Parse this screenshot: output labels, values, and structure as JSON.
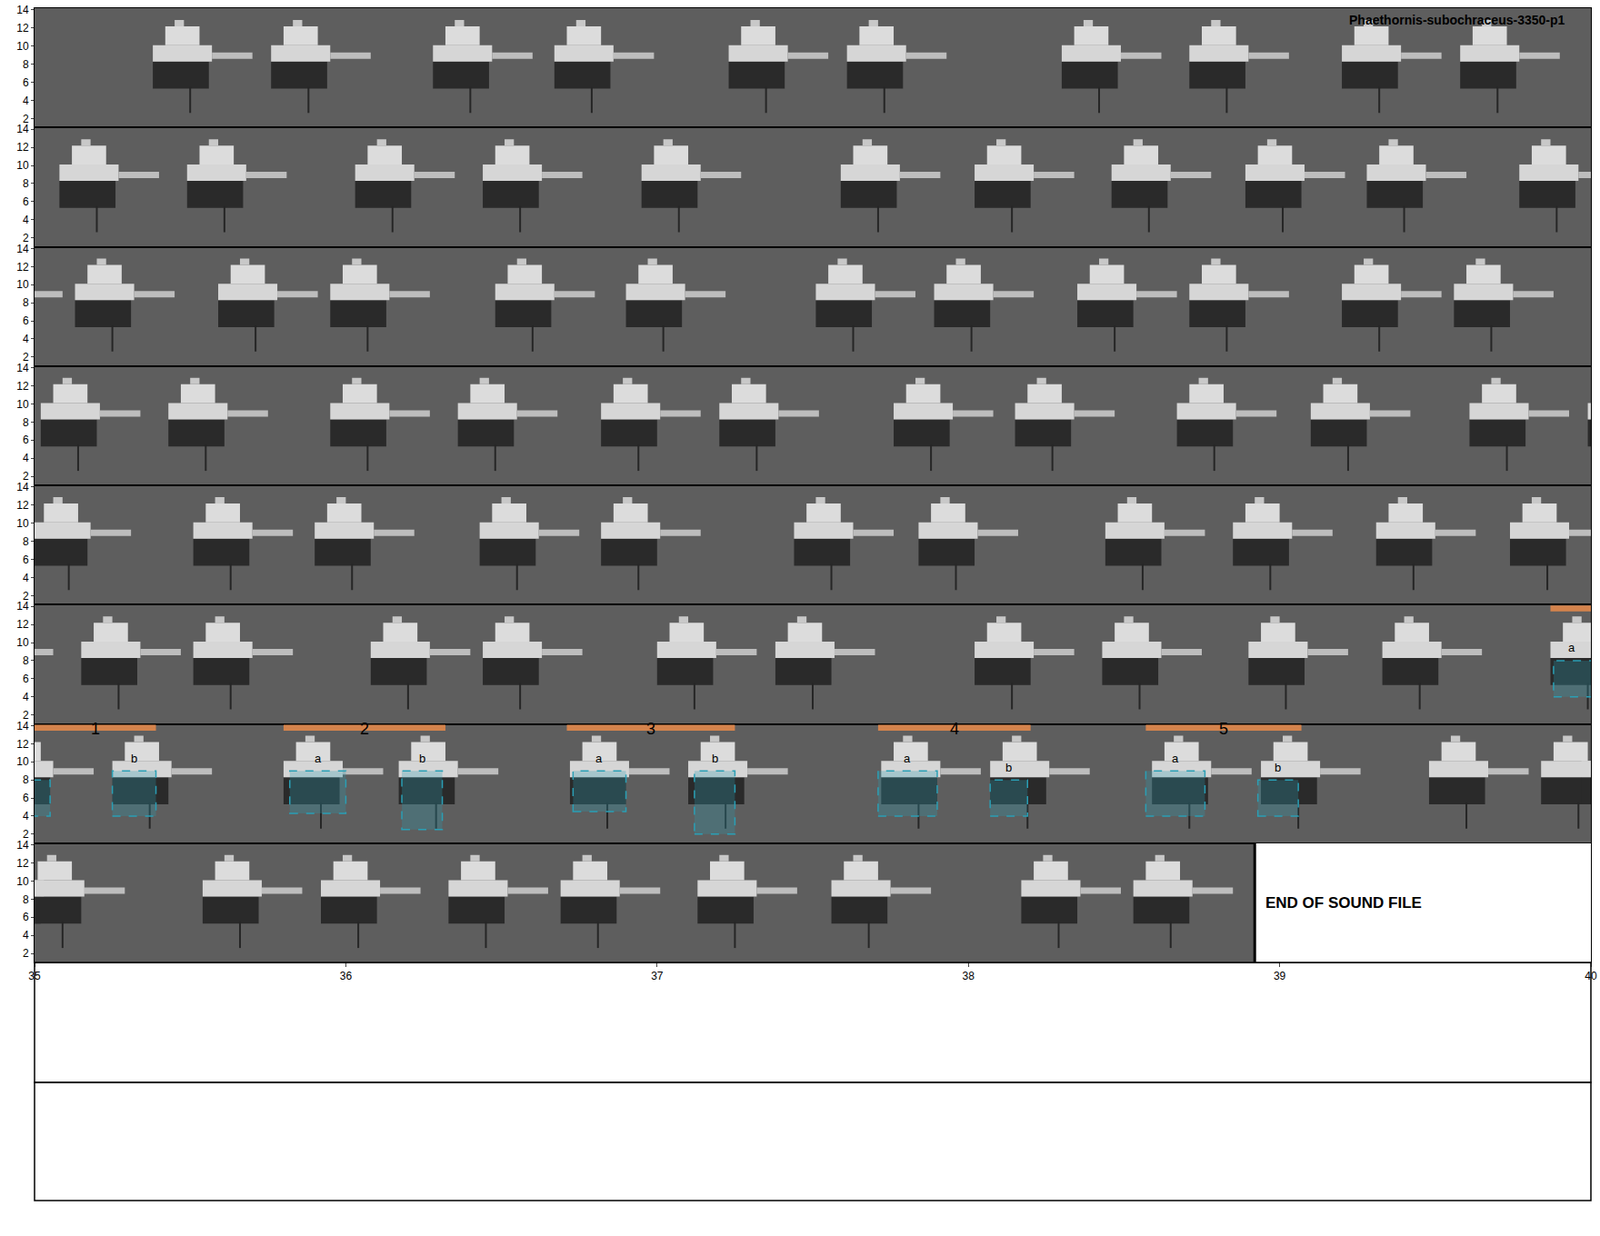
{
  "chart_data": {
    "type": "spectrogram",
    "title": "Phaethornis-subochraceus-3350-p1",
    "ylim": [
      1,
      14.2
    ],
    "yticks": [
      2,
      4,
      6,
      8,
      10,
      12,
      14
    ],
    "rows": [
      {
        "xlim": [
          0,
          5
        ],
        "syllables": [
          0.48,
          0.86,
          1.38,
          1.77,
          2.33,
          2.71,
          3.4,
          3.81,
          4.3,
          4.68
        ]
      },
      {
        "xlim": [
          5,
          10
        ],
        "syllables": [
          5.18,
          5.59,
          6.13,
          6.54,
          7.05,
          7.69,
          8.12,
          8.56,
          8.99,
          9.38,
          9.87
        ]
      },
      {
        "xlim": [
          10,
          15
        ],
        "syllables": [
          10.23,
          10.69,
          11.05,
          11.58,
          12.0,
          12.61,
          12.99,
          13.45,
          13.81,
          14.3,
          14.66
        ]
      },
      {
        "xlim": [
          15,
          20
        ],
        "syllables": [
          15.12,
          15.53,
          16.05,
          16.46,
          16.92,
          17.3,
          17.86,
          18.25,
          18.77,
          19.2,
          19.71
        ]
      },
      {
        "xlim": [
          20,
          25
        ],
        "syllables": [
          20.09,
          20.61,
          21.0,
          21.53,
          21.92,
          22.54,
          22.94,
          23.54,
          23.95,
          24.41,
          24.84
        ]
      },
      {
        "xlim": [
          25,
          30
        ],
        "syllables": [
          25.25,
          25.61,
          26.18,
          26.54,
          27.1,
          27.48,
          28.12,
          28.53,
          29.0,
          29.43,
          29.97
        ]
      },
      {
        "xlim": [
          30,
          35
        ],
        "syllables": [
          30.35,
          30.9,
          31.27,
          31.82,
          32.2,
          32.82,
          33.17,
          33.69,
          34.04,
          34.58,
          34.94
        ]
      },
      {
        "xlim": [
          35,
          40
        ],
        "syllables": [
          35.07,
          35.64,
          36.02,
          36.43,
          36.79,
          37.23,
          37.66,
          38.27,
          38.63
        ],
        "xticks": [
          35,
          36,
          37,
          38,
          39,
          40
        ]
      }
    ],
    "songs": {
      "color": "#d4834c",
      "items": [
        {
          "label": "1",
          "start": 29.87,
          "end": 30.39
        },
        {
          "label": "2",
          "start": 30.8,
          "end": 31.32
        },
        {
          "label": "3",
          "start": 31.71,
          "end": 32.25
        },
        {
          "label": "4",
          "start": 32.71,
          "end": 33.2
        },
        {
          "label": "5",
          "start": 33.57,
          "end": 34.07
        }
      ]
    },
    "selections": {
      "color": "#2a9fb5",
      "items": [
        {
          "label": "a",
          "start": 29.88,
          "end": 30.05,
          "fmin": 4,
          "fmax": 8
        },
        {
          "label": "b",
          "start": 30.25,
          "end": 30.39,
          "fmin": 4,
          "fmax": 9
        },
        {
          "label": "a",
          "start": 30.82,
          "end": 31.0,
          "fmin": 4.3,
          "fmax": 9
        },
        {
          "label": "b",
          "start": 31.18,
          "end": 31.31,
          "fmin": 2.5,
          "fmax": 9
        },
        {
          "label": "a",
          "start": 31.73,
          "end": 31.9,
          "fmin": 4.5,
          "fmax": 9
        },
        {
          "label": "b",
          "start": 32.12,
          "end": 32.25,
          "fmin": 2,
          "fmax": 9
        },
        {
          "label": "a",
          "start": 32.71,
          "end": 32.9,
          "fmin": 4,
          "fmax": 9
        },
        {
          "label": "b",
          "start": 33.07,
          "end": 33.19,
          "fmin": 4,
          "fmax": 8
        },
        {
          "label": "a",
          "start": 33.57,
          "end": 33.76,
          "fmin": 4,
          "fmax": 9
        },
        {
          "label": "b",
          "start": 33.93,
          "end": 34.06,
          "fmin": 4,
          "fmax": 8
        }
      ]
    },
    "end_text": "END OF SOUND FILE",
    "end_time": 38.92
  }
}
